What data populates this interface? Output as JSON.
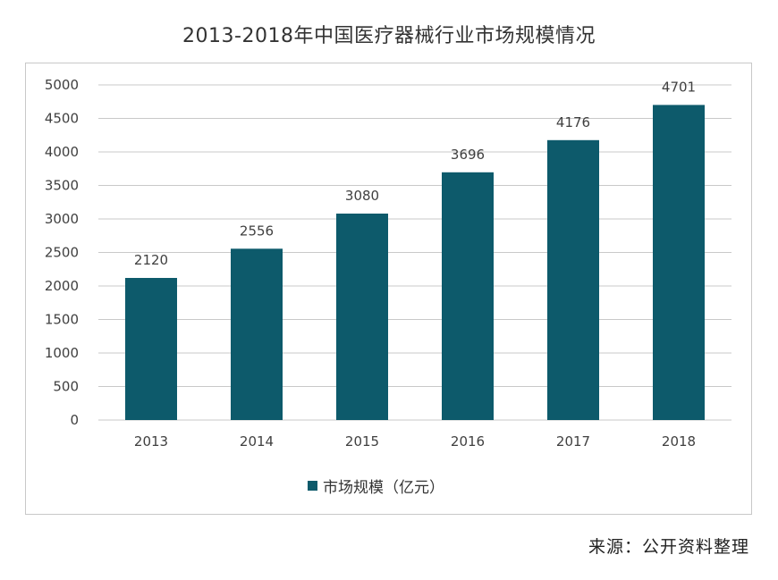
{
  "title": "2013-2018年中国医疗器械行业市场规模情况",
  "source": "来源：公开资料整理",
  "colors": {
    "bar": "#0d5a6b",
    "grid": "#c9c9c9",
    "frame": "#c8c8c8"
  },
  "chart_data": {
    "type": "bar",
    "title": "2013-2018年中国医疗器械行业市场规模情况",
    "categories": [
      "2013",
      "2014",
      "2015",
      "2016",
      "2017",
      "2018"
    ],
    "series": [
      {
        "name": "市场规模（亿元）",
        "values": [
          2120,
          2556,
          3080,
          3696,
          4176,
          4701
        ]
      }
    ],
    "data_labels": [
      "2120",
      "2556",
      "3080",
      "3696",
      "4176",
      "4701"
    ],
    "y_ticks": [
      "0",
      "500",
      "1000",
      "1500",
      "2000",
      "2500",
      "3000",
      "3500",
      "4000",
      "4500",
      "5000"
    ],
    "ylim": [
      0,
      5000
    ],
    "grid": true,
    "legend_position": "bottom"
  }
}
